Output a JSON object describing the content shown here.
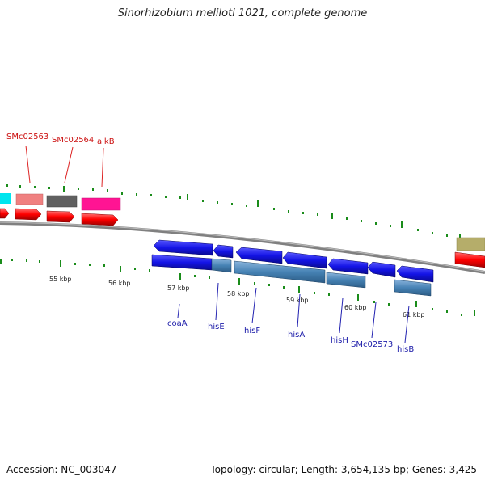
{
  "title": "Sinorhizobium meliloti 1021, complete genome",
  "footer": {
    "accession": "Accession: NC_003047",
    "summary": "Topology: circular; Length: 3,654,135 bp; Genes: 3,425"
  },
  "colors": {
    "cds_blue": "#1414e6",
    "gene_steelblue": "#4682b4",
    "cds_red": "#ff0000",
    "label_red": "#cc1111",
    "label_blue": "#1a1aa8",
    "backbone": "#808080",
    "tick": "#1a8c1a"
  },
  "scale_labels": [
    "55 kbp",
    "56 kbp",
    "57 kbp",
    "58 kbp",
    "59 kbp",
    "60 kbp",
    "61 kbp"
  ],
  "genes_outer": [
    {
      "label": "SMc02563",
      "color": "#f08080"
    },
    {
      "label": "SMc02564",
      "color": "#606060"
    },
    {
      "label": "alkB",
      "color": "#ff1493"
    }
  ],
  "genes_inner": [
    "coaA",
    "hisE",
    "hisF",
    "hisA",
    "hisH",
    "SMc02573",
    "hisB"
  ]
}
